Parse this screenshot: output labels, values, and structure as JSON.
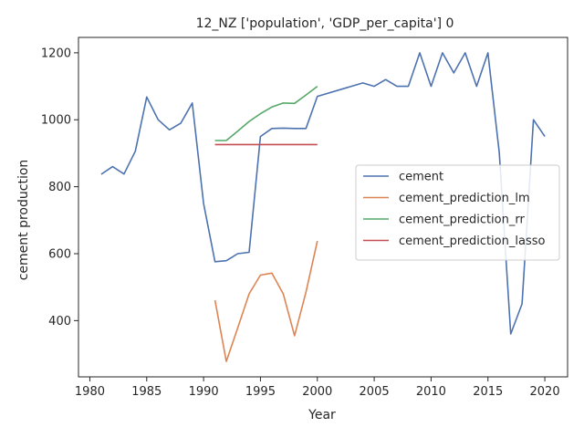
{
  "chart_data": {
    "type": "line",
    "title": "12_NZ ['population', 'GDP_per_capita'] 0",
    "xlabel": "Year",
    "ylabel": "cement production",
    "xlim": [
      1979.0,
      2022.0
    ],
    "ylim": [
      232,
      1246
    ],
    "xticks": [
      1980,
      1985,
      1990,
      1995,
      2000,
      2005,
      2010,
      2015,
      2020
    ],
    "yticks": [
      400,
      600,
      800,
      1000,
      1200
    ],
    "grid": false,
    "legend_position": "center-right",
    "series": [
      {
        "name": "cement",
        "color": "#4c72b0",
        "x": [
          1981,
          1982,
          1983,
          1984,
          1985,
          1986,
          1987,
          1988,
          1989,
          1990,
          1991,
          1992,
          1993,
          1994,
          1995,
          1996,
          1997,
          1998,
          1999,
          2000,
          2004,
          2005,
          2006,
          2007,
          2008,
          2009,
          2010,
          2011,
          2012,
          2013,
          2014,
          2015,
          2016,
          2017,
          2018,
          2019,
          2020
        ],
        "y": [
          837,
          860,
          838,
          906,
          1068,
          1000,
          970,
          990,
          1050,
          750,
          576,
          579,
          600,
          604,
          950,
          974,
          975,
          974,
          974,
          1070,
          1110,
          1100,
          1120,
          1100,
          1100,
          1200,
          1100,
          1200,
          1140,
          1200,
          1100,
          1200,
          900,
          360,
          450,
          1000,
          950
        ]
      },
      {
        "name": "cement_prediction_lm",
        "color": "#dd8452",
        "x": [
          1991,
          1992,
          1993,
          1994,
          1995,
          1996,
          1997,
          1998,
          1999,
          2000
        ],
        "y": [
          461,
          278,
          378,
          480,
          536,
          542,
          480,
          355,
          485,
          638
        ]
      },
      {
        "name": "cement_prediction_rr",
        "color": "#55a868",
        "x": [
          1991,
          1992,
          1993,
          1994,
          1995,
          1996,
          1997,
          1998,
          1999,
          2000
        ],
        "y": [
          938,
          938,
          966,
          995,
          1018,
          1038,
          1050,
          1049,
          1074,
          1100
        ]
      },
      {
        "name": "cement_prediction_lasso",
        "color": "#c44e52",
        "x": [
          1991,
          1992,
          1993,
          1994,
          1995,
          1996,
          1997,
          1998,
          1999,
          2000
        ],
        "y": [
          926,
          926,
          926,
          926,
          926,
          926,
          926,
          926,
          926,
          926
        ]
      }
    ]
  }
}
